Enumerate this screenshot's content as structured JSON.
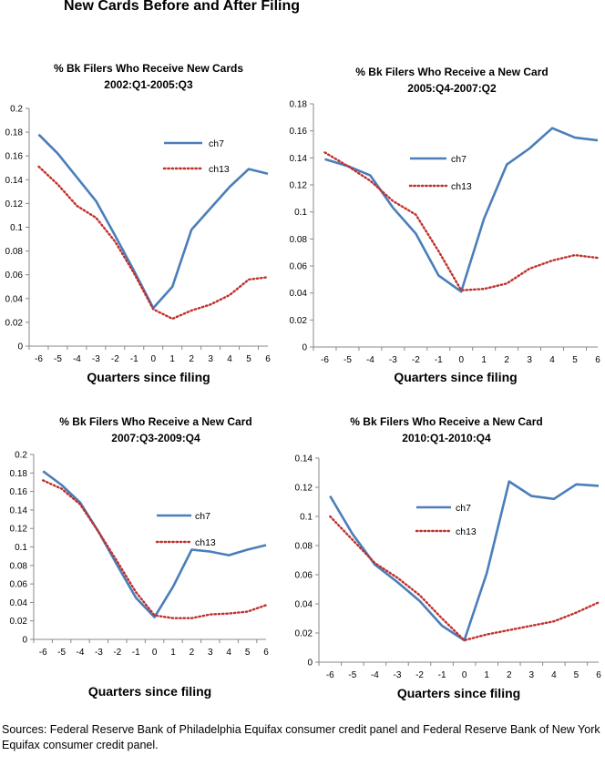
{
  "page": {
    "title": "New Cards Before and After Filing",
    "source": "Sources: Federal Reserve Bank of Philadelphia Equifax consumer credit panel and Federal Reserve Bank of New York Equifax consumer credit panel."
  },
  "colors": {
    "ch7": "#4a7ebb",
    "ch13": "#c0302c",
    "axis": "#888888"
  },
  "chart_data": [
    {
      "type": "line",
      "title": [
        "% Bk Filers Who Receive New Cards",
        "2002:Q1-2005:Q3"
      ],
      "xlabel": "Quarters since  filing",
      "x": [
        -6,
        -5,
        -4,
        -3,
        -2,
        -1,
        0,
        1,
        2,
        3,
        4,
        5,
        6
      ],
      "ylim": [
        0,
        0.2
      ],
      "ystep": 0.02,
      "yticks": [
        "0",
        "0.02",
        "0.04",
        "0.06",
        "0.08",
        "0.1",
        "0.12",
        "0.14",
        "0.16",
        "0.18",
        "0.2"
      ],
      "grid": false,
      "legend": "top-right",
      "series": [
        {
          "name": "ch7",
          "style": "solid",
          "values": [
            0.178,
            0.162,
            0.142,
            0.122,
            0.093,
            0.063,
            0.032,
            0.05,
            0.098,
            0.116,
            0.134,
            0.149,
            0.145
          ]
        },
        {
          "name": "ch13",
          "style": "dotted",
          "values": [
            0.151,
            0.136,
            0.118,
            0.108,
            0.088,
            0.061,
            0.031,
            0.023,
            0.03,
            0.035,
            0.043,
            0.056,
            0.058
          ]
        }
      ]
    },
    {
      "type": "line",
      "title": [
        "% Bk Filers Who Receive a New Card",
        "2005:Q4-2007:Q2"
      ],
      "xlabel": "Quarters since  filing",
      "x": [
        -6,
        -5,
        -4,
        -3,
        -2,
        -1,
        0,
        1,
        2,
        3,
        4,
        5,
        6
      ],
      "ylim": [
        0,
        0.18
      ],
      "ystep": 0.02,
      "yticks": [
        "0",
        "0.02",
        "0.04",
        "0.06",
        "0.08",
        "0.1",
        "0.12",
        "0.14",
        "0.16",
        "0.18"
      ],
      "grid": false,
      "legend": "top-right",
      "series": [
        {
          "name": "ch7",
          "style": "solid",
          "values": [
            0.139,
            0.134,
            0.127,
            0.103,
            0.084,
            0.053,
            0.041,
            0.095,
            0.135,
            0.147,
            0.162,
            0.155,
            0.153
          ]
        },
        {
          "name": "ch13",
          "style": "dotted",
          "values": [
            0.144,
            0.134,
            0.123,
            0.108,
            0.098,
            0.071,
            0.042,
            0.043,
            0.047,
            0.058,
            0.064,
            0.068,
            0.066
          ]
        }
      ]
    },
    {
      "type": "line",
      "title": [
        "% Bk Filers Who Receive a New Card",
        "2007:Q3-2009:Q4"
      ],
      "xlabel": "Quarters since filing",
      "x": [
        -6,
        -5,
        -4,
        -3,
        -2,
        -1,
        0,
        1,
        2,
        3,
        4,
        5,
        6
      ],
      "ylim": [
        0,
        0.2
      ],
      "ystep": 0.02,
      "yticks": [
        "0",
        "0.02",
        "0.04",
        "0.06",
        "0.08",
        "0.1",
        "0.12",
        "0.14",
        "0.16",
        "0.18",
        "0.2"
      ],
      "grid": false,
      "legend": "center-right",
      "series": [
        {
          "name": "ch7",
          "style": "solid",
          "values": [
            0.182,
            0.167,
            0.148,
            0.116,
            0.08,
            0.045,
            0.024,
            0.057,
            0.097,
            0.095,
            0.091,
            0.097,
            0.102
          ]
        },
        {
          "name": "ch13",
          "style": "dotted",
          "values": [
            0.172,
            0.163,
            0.146,
            0.116,
            0.084,
            0.051,
            0.026,
            0.023,
            0.023,
            0.027,
            0.028,
            0.03,
            0.037
          ]
        }
      ]
    },
    {
      "type": "line",
      "title": [
        "% Bk Filers Who Receive a New Card",
        "2010:Q1-2010:Q4"
      ],
      "xlabel": "Quarters since filing",
      "x": [
        -6,
        -5,
        -4,
        -3,
        -2,
        -1,
        0,
        1,
        2,
        3,
        4,
        5,
        6
      ],
      "ylim": [
        0,
        0.14
      ],
      "ystep": 0.02,
      "yticks": [
        "0",
        "0.02",
        "0.04",
        "0.06",
        "0.08",
        "0.1",
        "0.12",
        "0.14"
      ],
      "grid": false,
      "legend": "center-right",
      "series": [
        {
          "name": "ch7",
          "style": "solid",
          "values": [
            0.114,
            0.088,
            0.067,
            0.055,
            0.042,
            0.025,
            0.015,
            0.061,
            0.124,
            0.114,
            0.112,
            0.122,
            0.121
          ]
        },
        {
          "name": "ch13",
          "style": "dotted",
          "values": [
            0.1,
            0.084,
            0.068,
            0.058,
            0.046,
            0.03,
            0.015,
            0.019,
            0.022,
            0.025,
            0.028,
            0.034,
            0.041
          ]
        }
      ]
    }
  ]
}
